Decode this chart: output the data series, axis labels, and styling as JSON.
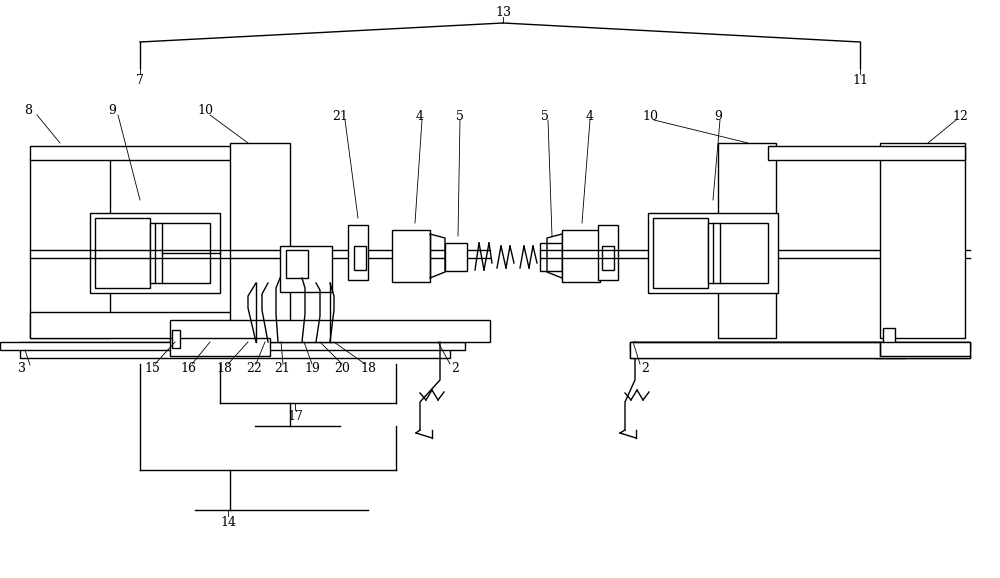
{
  "bg_color": "#ffffff",
  "lw": 1.0,
  "lw_thin": 0.6,
  "fig_width": 10.0,
  "fig_height": 5.78
}
